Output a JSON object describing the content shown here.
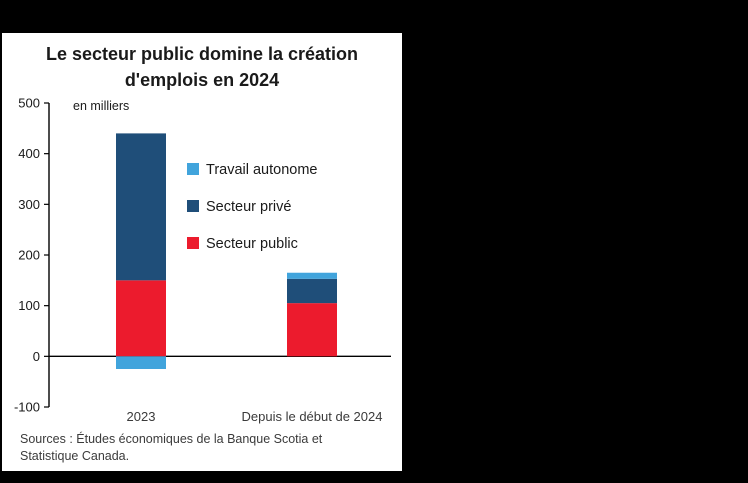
{
  "frame": {
    "background": "#000000",
    "panel_background": "#ffffff"
  },
  "chart": {
    "title_line1": "Le secteur public domine la création",
    "title_line2": "d'emplois en 2024",
    "unit_label": "en milliers",
    "source_line1": "Sources : Études économiques de la Banque Scotia et",
    "source_line2": "Statistique Canada."
  },
  "chart_data": {
    "type": "bar",
    "stacked": true,
    "title": "Le secteur public domine la création d'emplois en 2024",
    "ylabel": "en milliers",
    "xlabel": "",
    "categories": [
      "2023",
      "Depuis le début de 2024"
    ],
    "series": [
      {
        "name": "Travail autonome",
        "color": "#41A4DC",
        "values": [
          -25,
          12
        ]
      },
      {
        "name": "Secteur privé",
        "color": "#1F4E79",
        "values": [
          290,
          48
        ]
      },
      {
        "name": "Secteur public",
        "color": "#EC1B2D",
        "values": [
          150,
          105
        ]
      }
    ],
    "stack_order": [
      "Secteur public",
      "Secteur privé",
      "Travail autonome"
    ],
    "ylim": [
      -100,
      500
    ],
    "ytick_step": 100,
    "yticks": [
      -100,
      0,
      100,
      200,
      300,
      400,
      500
    ],
    "grid": false,
    "legend_position": "inside-center"
  }
}
